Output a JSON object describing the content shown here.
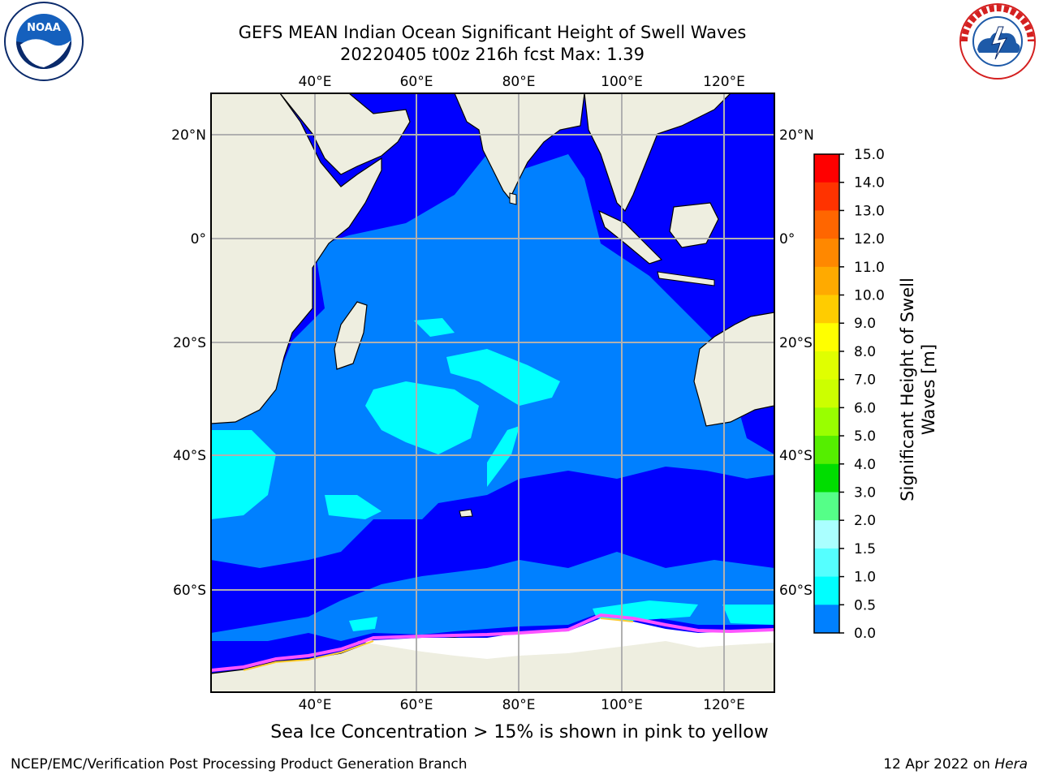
{
  "title": {
    "line1": "GEFS MEAN Indian Ocean Significant Height of Swell Waves",
    "line2": "20220405 t00z 216h fcst   Max: 1.39"
  },
  "logos": {
    "left": {
      "text": "NOAA",
      "ring_text": "NATIONAL OCEANIC AND ATMOSPHERIC ADMINISTRATION · U.S. DEPARTMENT OF COMMERCE",
      "icon": "noaa-logo"
    },
    "right": {
      "ring_text": "NATIONAL WEATHER SERVICE",
      "icon": "nws-logo"
    }
  },
  "map": {
    "lon_ticks": [
      "40°E",
      "60°E",
      "80°E",
      "100°E",
      "120°E"
    ],
    "lat_ticks_left": [
      "20°N",
      "0°",
      "20°S",
      "40°S",
      "60°S"
    ],
    "lat_ticks_right": [
      "20°N",
      "0°",
      "20°S",
      "40°S",
      "60°S"
    ],
    "grid": true,
    "colors": {
      "land": "#eeeee0",
      "band_0": "#0000ff",
      "band_1": "#0080ff",
      "band_2": "#00ffff",
      "sea_ice_low": "#ff55ff",
      "sea_ice_high": "#ffcc33",
      "ice_shelf": "#ffffff"
    }
  },
  "colorbar": {
    "title": "Significant Height of Swell Waves [m]",
    "ticks": [
      "15.0",
      "14.0",
      "13.0",
      "12.0",
      "11.0",
      "10.0",
      "9.0",
      "8.0",
      "7.0",
      "6.0",
      "5.0",
      "4.0",
      "3.0",
      "2.0",
      "1.5",
      "1.0",
      "0.5",
      "0.0"
    ],
    "colors": [
      "#ff0000",
      "#ff3300",
      "#ff6600",
      "#ff8800",
      "#ffaa00",
      "#ffcc00",
      "#ffff00",
      "#e0ff00",
      "#ccff00",
      "#99ff00",
      "#55ee00",
      "#00dd00",
      "#55ff88",
      "#aaffff",
      "#55ffff",
      "#00ffff",
      "#0080ff",
      "#0000ff"
    ]
  },
  "note": "Sea Ice Concentration > 15% is shown in pink to yellow",
  "footer": {
    "left": "NCEP/EMC/Verification Post Processing Product Generation Branch",
    "right_date": "12 Apr 2022 on ",
    "right_host": "Hera"
  }
}
